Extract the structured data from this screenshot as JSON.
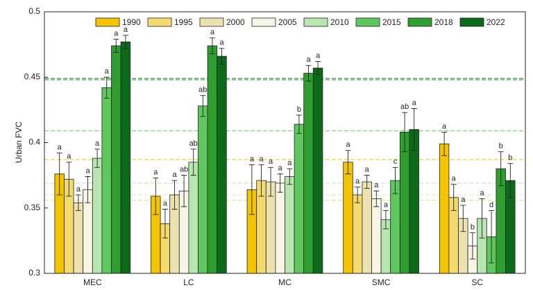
{
  "chart_data": {
    "type": "bar",
    "y_label": "Urban FVC",
    "categories": [
      "MEC",
      "LC",
      "MC",
      "SMC",
      "SC"
    ],
    "ylim": [
      0.3,
      0.5
    ],
    "yticks": [
      0.3,
      0.35,
      0.4,
      0.45,
      0.5
    ],
    "legend": "top",
    "series": [
      {
        "name": "1990",
        "color": "#f5c400",
        "values": [
          0.376,
          0.359,
          0.364,
          0.385,
          0.399
        ],
        "errors": [
          0.016,
          0.014,
          0.019,
          0.009,
          0.009
        ],
        "letters": [
          "a",
          "a",
          "a",
          "a",
          "a"
        ],
        "mean_line": 0.387
      },
      {
        "name": "1995",
        "color": "#f3da6e",
        "values": [
          0.372,
          0.338,
          0.371,
          0.36,
          0.358
        ],
        "errors": [
          0.013,
          0.011,
          0.012,
          0.006,
          0.01
        ],
        "letters": [
          "a",
          "a",
          "a",
          "a",
          "a"
        ],
        "mean_line": 0.356
      },
      {
        "name": "2000",
        "color": "#ece2b0",
        "values": [
          0.354,
          0.36,
          0.37,
          0.37,
          0.342
        ],
        "errors": [
          0.006,
          0.011,
          0.011,
          0.005,
          0.01
        ],
        "letters": [
          "a",
          "a",
          "a",
          "a",
          "a"
        ],
        "mean_line": 0.36
      },
      {
        "name": "2005",
        "color": "#f7f6e4",
        "values": [
          0.364,
          0.363,
          0.369,
          0.357,
          0.321
        ],
        "errors": [
          0.01,
          0.012,
          0.007,
          0.006,
          0.01
        ],
        "letters": [
          "a",
          "ab",
          "a",
          "a",
          "b"
        ],
        "mean_line": 0.366
      },
      {
        "name": "2010",
        "color": "#b8e6b0",
        "values": [
          0.388,
          0.385,
          0.374,
          0.341,
          0.342
        ],
        "errors": [
          0.007,
          0.01,
          0.006,
          0.007,
          0.015
        ],
        "letters": [
          "a",
          "ab",
          "a",
          "a",
          "a"
        ],
        "mean_line": 0.369
      },
      {
        "name": "2015",
        "color": "#5ec85e",
        "values": [
          0.442,
          0.428,
          0.414,
          0.371,
          0.328
        ],
        "errors": [
          0.008,
          0.008,
          0.007,
          0.01,
          0.02
        ],
        "letters": [
          "a",
          "ab",
          "b",
          "c",
          "d"
        ],
        "mean_line": 0.409
      },
      {
        "name": "2018",
        "color": "#2e9e2e",
        "values": [
          0.474,
          0.474,
          0.453,
          0.408,
          0.38
        ],
        "errors": [
          0.005,
          0.006,
          0.006,
          0.015,
          0.013
        ],
        "letters": [
          "a",
          "a",
          "a",
          "ab",
          "b"
        ],
        "mean_line": 0.448
      },
      {
        "name": "2022",
        "color": "#0b6b1a",
        "values": [
          0.477,
          0.466,
          0.457,
          0.41,
          0.371
        ],
        "errors": [
          0.005,
          0.006,
          0.005,
          0.016,
          0.013
        ],
        "letters": [
          "a",
          "a",
          "a",
          "a",
          "b"
        ],
        "mean_line": 0.449
      }
    ]
  }
}
